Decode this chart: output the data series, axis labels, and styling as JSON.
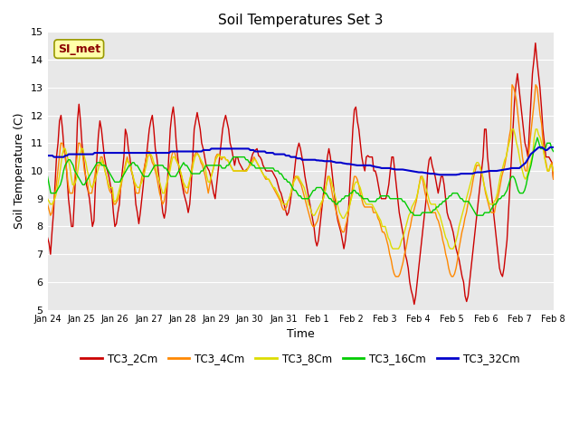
{
  "title": "Soil Temperatures Set 3",
  "xlabel": "Time",
  "ylabel": "Soil Temperature (C)",
  "ylim": [
    5.0,
    15.0
  ],
  "yticks": [
    5.0,
    6.0,
    7.0,
    8.0,
    9.0,
    10.0,
    11.0,
    12.0,
    13.0,
    14.0,
    15.0
  ],
  "bg_color": "#e8e8e8",
  "fig_color": "#ffffff",
  "watermark": "SI_met",
  "series": {
    "TC3_2Cm": {
      "color": "#cc0000",
      "lw": 1.0
    },
    "TC3_4Cm": {
      "color": "#ff8800",
      "lw": 1.0
    },
    "TC3_8Cm": {
      "color": "#dddd00",
      "lw": 1.0
    },
    "TC3_16Cm": {
      "color": "#00cc00",
      "lw": 1.0
    },
    "TC3_32Cm": {
      "color": "#0000cc",
      "lw": 1.5
    }
  },
  "xtick_labels": [
    "Jan 24",
    "Jan 25",
    "Jan 26",
    "Jan 27",
    "Jan 28",
    "Jan 29",
    "Jan 30",
    "Jan 31",
    "Feb 1",
    "Feb 2",
    "Feb 3",
    "Feb 4",
    "Feb 5",
    "Feb 6",
    "Feb 7",
    "Feb 8"
  ],
  "n_points": 385,
  "n_days": 15,
  "TC3_2Cm": [
    7.6,
    7.4,
    7.0,
    7.8,
    8.5,
    9.5,
    10.5,
    11.0,
    11.8,
    12.0,
    11.5,
    10.8,
    10.5,
    9.8,
    9.0,
    8.5,
    8.0,
    8.0,
    9.0,
    10.2,
    11.8,
    12.4,
    11.8,
    11.0,
    10.5,
    10.0,
    9.5,
    9.3,
    9.0,
    8.5,
    8.0,
    8.2,
    9.5,
    10.5,
    11.3,
    11.8,
    11.5,
    11.0,
    10.5,
    10.2,
    10.0,
    9.8,
    9.5,
    9.2,
    8.5,
    8.0,
    8.1,
    8.5,
    8.8,
    9.5,
    10.0,
    10.5,
    11.5,
    11.3,
    10.8,
    10.5,
    10.0,
    9.8,
    9.5,
    8.8,
    8.5,
    8.1,
    8.5,
    9.0,
    9.5,
    10.2,
    10.5,
    11.0,
    11.5,
    11.8,
    12.0,
    11.5,
    10.8,
    10.5,
    10.0,
    9.5,
    9.0,
    8.5,
    8.3,
    8.6,
    9.5,
    10.5,
    11.5,
    12.0,
    12.3,
    11.8,
    11.0,
    10.5,
    10.0,
    9.8,
    9.5,
    9.2,
    9.0,
    8.8,
    8.5,
    8.8,
    9.5,
    10.5,
    11.5,
    11.8,
    12.1,
    11.8,
    11.5,
    11.0,
    10.8,
    10.5,
    10.2,
    10.1,
    10.0,
    9.8,
    9.5,
    9.2,
    9.0,
    9.5,
    10.0,
    10.5,
    11.0,
    11.5,
    11.8,
    12.0,
    11.75,
    11.5,
    11.0,
    10.8,
    10.5,
    10.2,
    10.5,
    10.5,
    10.3,
    10.2,
    10.1,
    10.0,
    10.0,
    10.05,
    10.1,
    10.2,
    10.4,
    10.6,
    10.7,
    10.75,
    10.8,
    10.55,
    10.5,
    10.4,
    10.2,
    10.1,
    10.0,
    10.0,
    10.0,
    10.0,
    10.0,
    9.9,
    9.8,
    9.7,
    9.5,
    9.3,
    9.2,
    9.0,
    8.8,
    8.6,
    8.4,
    8.5,
    8.8,
    9.2,
    9.5,
    10.0,
    10.5,
    10.8,
    11.0,
    10.8,
    10.5,
    10.2,
    9.8,
    9.5,
    9.2,
    8.9,
    8.6,
    8.3,
    8.0,
    7.5,
    7.3,
    7.5,
    8.0,
    8.5,
    9.0,
    9.5,
    10.0,
    10.5,
    10.8,
    10.5,
    10.0,
    9.5,
    9.0,
    8.5,
    8.2,
    8.0,
    7.8,
    7.5,
    7.2,
    7.5,
    8.0,
    8.5,
    9.5,
    10.5,
    11.5,
    12.2,
    12.3,
    11.8,
    11.5,
    11.0,
    10.5,
    10.2,
    10.0,
    10.5,
    10.55,
    10.5,
    10.5,
    10.5,
    10.0,
    10.0,
    9.8,
    9.5,
    9.2,
    9.0,
    9.0,
    9.0,
    9.0,
    9.2,
    9.5,
    10.0,
    10.5,
    10.5,
    10.0,
    9.5,
    9.0,
    8.5,
    8.2,
    7.9,
    7.6,
    7.0,
    6.8,
    6.5,
    6.0,
    5.7,
    5.5,
    5.2,
    5.5,
    6.0,
    6.5,
    7.0,
    7.5,
    8.0,
    8.5,
    9.0,
    10.0,
    10.4,
    10.5,
    10.2,
    10.0,
    9.8,
    9.5,
    9.2,
    9.5,
    9.8,
    9.8,
    9.5,
    9.0,
    8.5,
    8.3,
    8.2,
    8.0,
    7.8,
    7.5,
    7.2,
    7.0,
    6.8,
    6.5,
    6.2,
    6.0,
    5.5,
    5.3,
    5.5,
    6.0,
    6.5,
    7.0,
    7.5,
    8.0,
    8.5,
    9.0,
    9.5,
    10.0,
    10.5,
    11.5,
    11.5,
    10.5,
    10.0,
    9.5,
    9.0,
    8.5,
    8.0,
    7.5,
    7.0,
    6.5,
    6.3,
    6.2,
    6.5,
    7.0,
    7.5,
    8.5,
    9.5,
    10.5,
    11.5,
    12.5,
    13.1,
    13.5,
    13.0,
    12.5,
    12.0,
    11.5,
    11.0,
    10.8,
    10.5,
    11.5,
    12.5,
    13.5,
    14.0,
    14.6,
    14.0,
    13.5,
    13.0,
    12.3,
    11.5,
    11.0,
    10.5,
    10.5,
    10.5,
    10.4,
    10.3,
    9.7
  ],
  "TC3_4Cm": [
    8.8,
    8.6,
    8.4,
    8.5,
    8.8,
    9.2,
    9.5,
    10.0,
    10.5,
    11.0,
    11.0,
    10.8,
    10.5,
    10.0,
    9.5,
    9.2,
    9.2,
    9.2,
    9.5,
    10.0,
    10.5,
    11.0,
    11.0,
    10.8,
    10.5,
    10.0,
    9.8,
    9.6,
    9.2,
    9.2,
    9.2,
    9.5,
    9.8,
    10.2,
    10.2,
    10.2,
    10.5,
    10.5,
    10.3,
    10.0,
    9.8,
    9.5,
    9.3,
    9.2,
    9.2,
    8.8,
    8.8,
    8.9,
    9.0,
    9.2,
    9.5,
    9.8,
    10.0,
    10.3,
    10.5,
    10.3,
    10.2,
    10.0,
    9.8,
    9.5,
    9.2,
    9.2,
    9.2,
    9.5,
    9.8,
    10.0,
    10.2,
    10.5,
    10.7,
    10.7,
    10.5,
    10.3,
    10.2,
    10.0,
    9.8,
    9.5,
    9.2,
    9.0,
    8.8,
    8.9,
    9.2,
    9.5,
    9.8,
    10.2,
    10.5,
    10.7,
    10.7,
    10.5,
    10.3,
    10.2,
    10.0,
    9.8,
    9.5,
    9.3,
    9.2,
    9.2,
    9.5,
    9.8,
    10.2,
    10.5,
    10.6,
    10.7,
    10.6,
    10.5,
    10.3,
    10.2,
    10.0,
    9.8,
    9.5,
    9.2,
    9.5,
    9.8,
    10.0,
    10.2,
    10.5,
    10.6,
    10.6,
    10.5,
    10.4,
    10.5,
    10.5,
    10.4,
    10.4,
    10.3,
    10.2,
    10.1,
    10.0,
    10.0,
    10.0,
    10.0,
    10.0,
    10.0,
    10.0,
    10.0,
    10.0,
    10.0,
    10.1,
    10.2,
    10.3,
    10.4,
    10.5,
    10.4,
    10.3,
    10.2,
    10.1,
    10.0,
    9.9,
    9.8,
    9.7,
    9.7,
    9.7,
    9.6,
    9.5,
    9.4,
    9.3,
    9.2,
    9.1,
    9.0,
    8.9,
    8.7,
    8.6,
    8.6,
    8.7,
    8.9,
    9.0,
    9.2,
    9.5,
    9.7,
    9.8,
    9.8,
    9.7,
    9.6,
    9.5,
    9.3,
    9.1,
    8.9,
    8.7,
    8.5,
    8.3,
    8.1,
    8.0,
    8.0,
    8.1,
    8.2,
    8.4,
    8.6,
    8.8,
    9.0,
    9.2,
    9.5,
    9.8,
    9.8,
    9.5,
    9.2,
    8.9,
    8.7,
    8.5,
    8.3,
    8.1,
    7.9,
    7.8,
    7.8,
    8.0,
    8.2,
    8.5,
    8.8,
    9.1,
    9.5,
    9.8,
    9.8,
    9.7,
    9.5,
    9.2,
    9.0,
    8.8,
    8.7,
    8.7,
    8.7,
    8.7,
    8.7,
    8.7,
    8.5,
    8.5,
    8.5,
    8.3,
    8.2,
    8.0,
    7.8,
    7.8,
    7.7,
    7.5,
    7.3,
    7.0,
    6.8,
    6.5,
    6.3,
    6.2,
    6.2,
    6.2,
    6.3,
    6.5,
    6.7,
    7.0,
    7.2,
    7.5,
    7.8,
    8.0,
    8.3,
    8.5,
    8.7,
    8.9,
    9.2,
    9.5,
    9.8,
    9.8,
    9.5,
    9.2,
    9.0,
    8.8,
    8.6,
    8.5,
    8.5,
    8.5,
    8.5,
    8.3,
    8.2,
    8.0,
    7.8,
    7.5,
    7.3,
    7.0,
    6.8,
    6.5,
    6.3,
    6.2,
    6.2,
    6.3,
    6.5,
    6.8,
    7.2,
    7.5,
    7.8,
    8.0,
    8.3,
    8.5,
    8.8,
    9.0,
    9.2,
    9.5,
    9.8,
    10.0,
    10.2,
    10.2,
    10.2,
    10.0,
    9.8,
    9.5,
    9.2,
    9.0,
    8.8,
    8.6,
    8.5,
    8.5,
    8.5,
    8.8,
    9.0,
    9.2,
    9.5,
    9.8,
    10.0,
    10.2,
    10.5,
    10.8,
    11.2,
    11.5,
    13.1,
    13.0,
    12.8,
    12.5,
    12.0,
    11.5,
    11.0,
    10.5,
    10.2,
    10.0,
    10.0,
    10.5,
    11.0,
    11.5,
    12.0,
    12.5,
    13.1,
    13.0,
    12.5,
    12.0,
    11.7,
    11.0,
    10.5,
    10.3,
    10.0,
    10.0,
    10.2,
    10.3,
    9.7
  ],
  "TC3_8Cm": [
    9.0,
    8.9,
    8.8,
    8.8,
    8.9,
    9.0,
    9.2,
    9.5,
    9.8,
    10.2,
    10.6,
    10.8,
    10.8,
    10.6,
    10.4,
    10.2,
    9.8,
    9.5,
    9.5,
    9.6,
    9.8,
    10.2,
    10.6,
    10.8,
    10.8,
    10.5,
    10.3,
    10.0,
    9.8,
    9.5,
    9.4,
    9.5,
    9.6,
    9.8,
    10.0,
    10.2,
    10.2,
    10.4,
    10.2,
    10.0,
    9.8,
    9.6,
    9.4,
    9.4,
    9.4,
    8.9,
    8.9,
    9.0,
    9.2,
    9.4,
    9.6,
    9.8,
    10.0,
    10.2,
    10.4,
    10.3,
    10.2,
    10.0,
    9.8,
    9.6,
    9.5,
    9.4,
    9.4,
    9.5,
    9.6,
    9.8,
    10.0,
    10.2,
    10.5,
    10.6,
    10.6,
    10.5,
    10.3,
    10.2,
    10.0,
    9.8,
    9.6,
    9.4,
    9.2,
    9.2,
    9.4,
    9.6,
    9.8,
    10.0,
    10.3,
    10.5,
    10.5,
    10.4,
    10.3,
    10.2,
    10.0,
    9.8,
    9.6,
    9.5,
    9.4,
    9.4,
    9.6,
    9.8,
    10.0,
    10.3,
    10.5,
    10.6,
    10.6,
    10.5,
    10.4,
    10.3,
    10.2,
    10.1,
    9.8,
    9.6,
    9.6,
    9.8,
    10.0,
    10.2,
    10.4,
    10.5,
    10.6,
    10.5,
    10.5,
    10.5,
    10.5,
    10.4,
    10.4,
    10.3,
    10.2,
    10.1,
    10.0,
    10.0,
    10.0,
    10.0,
    10.0,
    10.0,
    10.0,
    10.0,
    10.0,
    10.0,
    10.1,
    10.2,
    10.2,
    10.3,
    10.4,
    10.4,
    10.3,
    10.2,
    10.1,
    10.0,
    9.9,
    9.8,
    9.8,
    9.7,
    9.7,
    9.6,
    9.5,
    9.4,
    9.4,
    9.3,
    9.2,
    9.1,
    9.0,
    8.9,
    8.8,
    8.8,
    8.8,
    8.9,
    9.0,
    9.2,
    9.4,
    9.6,
    9.7,
    9.8,
    9.8,
    9.7,
    9.6,
    9.5,
    9.4,
    9.2,
    9.0,
    8.8,
    8.7,
    8.5,
    8.4,
    8.4,
    8.5,
    8.6,
    8.7,
    8.8,
    8.9,
    9.0,
    9.2,
    9.5,
    9.7,
    9.8,
    9.7,
    9.5,
    9.3,
    9.1,
    8.9,
    8.7,
    8.5,
    8.4,
    8.3,
    8.3,
    8.4,
    8.5,
    8.6,
    8.8,
    9.0,
    9.2,
    9.5,
    9.6,
    9.6,
    9.5,
    9.4,
    9.2,
    9.0,
    8.9,
    8.8,
    8.8,
    8.8,
    8.8,
    8.8,
    8.7,
    8.6,
    8.5,
    8.4,
    8.3,
    8.2,
    8.0,
    8.0,
    8.0,
    7.8,
    7.6,
    7.5,
    7.3,
    7.2,
    7.2,
    7.2,
    7.2,
    7.2,
    7.3,
    7.5,
    7.6,
    7.8,
    8.0,
    8.2,
    8.4,
    8.5,
    8.7,
    8.8,
    8.9,
    9.0,
    9.2,
    9.5,
    9.7,
    9.8,
    9.7,
    9.5,
    9.3,
    9.1,
    8.9,
    8.8,
    8.8,
    8.8,
    8.8,
    8.6,
    8.5,
    8.4,
    8.2,
    8.0,
    7.8,
    7.6,
    7.5,
    7.3,
    7.2,
    7.2,
    7.2,
    7.3,
    7.5,
    7.7,
    8.0,
    8.2,
    8.4,
    8.6,
    8.8,
    9.0,
    9.2,
    9.4,
    9.6,
    9.8,
    10.0,
    10.2,
    10.3,
    10.3,
    10.2,
    10.0,
    9.8,
    9.5,
    9.3,
    9.1,
    8.9,
    8.8,
    8.8,
    8.8,
    8.9,
    9.0,
    9.2,
    9.5,
    9.8,
    10.0,
    10.2,
    10.4,
    10.5,
    10.8,
    11.0,
    11.2,
    11.5,
    11.5,
    11.3,
    11.0,
    10.8,
    10.5,
    10.2,
    10.0,
    9.8,
    9.7,
    9.8,
    10.0,
    10.2,
    10.4,
    10.6,
    11.2,
    11.5,
    11.5,
    11.3,
    11.2,
    11.0,
    10.8,
    10.5,
    10.2,
    10.0,
    10.0,
    10.2,
    10.2,
    10.0
  ],
  "TC3_16Cm": [
    9.8,
    9.5,
    9.2,
    9.2,
    9.2,
    9.2,
    9.3,
    9.4,
    9.5,
    9.7,
    10.0,
    10.2,
    10.3,
    10.4,
    10.4,
    10.3,
    10.2,
    10.0,
    9.9,
    9.8,
    9.7,
    9.6,
    9.5,
    9.5,
    9.6,
    9.7,
    9.8,
    9.9,
    10.0,
    10.1,
    10.2,
    10.3,
    10.3,
    10.3,
    10.2,
    10.2,
    10.2,
    10.1,
    10.0,
    9.9,
    9.8,
    9.7,
    9.6,
    9.6,
    9.6,
    9.6,
    9.7,
    9.8,
    9.9,
    10.0,
    10.1,
    10.2,
    10.2,
    10.3,
    10.3,
    10.2,
    10.2,
    10.1,
    10.0,
    9.9,
    9.8,
    9.8,
    9.8,
    9.8,
    9.9,
    10.0,
    10.1,
    10.2,
    10.2,
    10.2,
    10.2,
    10.2,
    10.2,
    10.1,
    10.1,
    10.0,
    9.9,
    9.8,
    9.8,
    9.8,
    9.8,
    9.9,
    10.0,
    10.1,
    10.2,
    10.3,
    10.2,
    10.2,
    10.1,
    10.0,
    9.9,
    9.9,
    9.9,
    9.9,
    9.9,
    9.9,
    10.0,
    10.0,
    10.1,
    10.2,
    10.2,
    10.2,
    10.2,
    10.2,
    10.2,
    10.2,
    10.2,
    10.2,
    10.2,
    10.1,
    10.1,
    10.1,
    10.2,
    10.2,
    10.3,
    10.4,
    10.5,
    10.5,
    10.5,
    10.5,
    10.5,
    10.5,
    10.5,
    10.5,
    10.4,
    10.4,
    10.3,
    10.3,
    10.2,
    10.2,
    10.1,
    10.1,
    10.1,
    10.1,
    10.1,
    10.1,
    10.1,
    10.1,
    10.1,
    10.1,
    10.1,
    10.1,
    10.0,
    10.0,
    10.0,
    9.9,
    9.9,
    9.8,
    9.7,
    9.7,
    9.6,
    9.6,
    9.5,
    9.4,
    9.3,
    9.3,
    9.2,
    9.1,
    9.1,
    9.0,
    9.0,
    9.0,
    9.0,
    9.0,
    9.1,
    9.2,
    9.3,
    9.3,
    9.4,
    9.4,
    9.4,
    9.4,
    9.3,
    9.2,
    9.2,
    9.1,
    9.0,
    9.0,
    8.9,
    8.9,
    8.8,
    8.8,
    8.9,
    8.9,
    9.0,
    9.0,
    9.1,
    9.1,
    9.1,
    9.2,
    9.2,
    9.3,
    9.3,
    9.2,
    9.2,
    9.1,
    9.1,
    9.0,
    9.0,
    9.0,
    9.0,
    8.9,
    8.9,
    8.9,
    8.9,
    8.9,
    9.0,
    9.0,
    9.1,
    9.1,
    9.1,
    9.1,
    9.1,
    9.1,
    9.0,
    9.0,
    9.0,
    9.0,
    9.0,
    9.0,
    9.0,
    9.0,
    8.9,
    8.9,
    8.8,
    8.7,
    8.6,
    8.5,
    8.5,
    8.4,
    8.4,
    8.4,
    8.4,
    8.4,
    8.5,
    8.5,
    8.5,
    8.5,
    8.5,
    8.5,
    8.5,
    8.6,
    8.6,
    8.7,
    8.7,
    8.8,
    8.8,
    8.9,
    8.9,
    9.0,
    9.0,
    9.1,
    9.1,
    9.2,
    9.2,
    9.2,
    9.2,
    9.1,
    9.0,
    9.0,
    8.9,
    8.9,
    8.9,
    8.9,
    8.8,
    8.7,
    8.6,
    8.5,
    8.4,
    8.4,
    8.4,
    8.4,
    8.4,
    8.5,
    8.5,
    8.5,
    8.5,
    8.6,
    8.7,
    8.8,
    8.8,
    8.9,
    9.0,
    9.0,
    9.1,
    9.1,
    9.2,
    9.3,
    9.5,
    9.7,
    9.8,
    9.8,
    9.7,
    9.5,
    9.3,
    9.2,
    9.2,
    9.2,
    9.3,
    9.5,
    9.8,
    10.0,
    10.2,
    10.5,
    10.8,
    11.0,
    11.2,
    11.0,
    10.8,
    10.8,
    10.8,
    10.8,
    11.0,
    11.0,
    11.0,
    10.8,
    10.7
  ],
  "TC3_32Cm": [
    10.55,
    10.55,
    10.55,
    10.55,
    10.5,
    10.5,
    10.5,
    10.5,
    10.5,
    10.5,
    10.5,
    10.55,
    10.55,
    10.6,
    10.6,
    10.6,
    10.6,
    10.6,
    10.6,
    10.6,
    10.6,
    10.6,
    10.6,
    10.6,
    10.6,
    10.6,
    10.6,
    10.6,
    10.6,
    10.65,
    10.65,
    10.65,
    10.65,
    10.65,
    10.65,
    10.65,
    10.65,
    10.65,
    10.65,
    10.65,
    10.65,
    10.65,
    10.65,
    10.65,
    10.65,
    10.65,
    10.65,
    10.65,
    10.65,
    10.65,
    10.65,
    10.65,
    10.65,
    10.65,
    10.65,
    10.65,
    10.65,
    10.65,
    10.65,
    10.65,
    10.65,
    10.65,
    10.65,
    10.65,
    10.65,
    10.65,
    10.65,
    10.65,
    10.65,
    10.65,
    10.65,
    10.65,
    10.65,
    10.65,
    10.65,
    10.65,
    10.7,
    10.7,
    10.7,
    10.7,
    10.7,
    10.7,
    10.7,
    10.7,
    10.7,
    10.7,
    10.7,
    10.7,
    10.7,
    10.7,
    10.7,
    10.7,
    10.7,
    10.7,
    10.7,
    10.7,
    10.75,
    10.75,
    10.75,
    10.75,
    10.75,
    10.8,
    10.8,
    10.8,
    10.8,
    10.8,
    10.8,
    10.8,
    10.8,
    10.8,
    10.8,
    10.8,
    10.8,
    10.8,
    10.8,
    10.8,
    10.8,
    10.8,
    10.8,
    10.8,
    10.8,
    10.8,
    10.8,
    10.8,
    10.8,
    10.75,
    10.75,
    10.75,
    10.7,
    10.7,
    10.7,
    10.7,
    10.7,
    10.7,
    10.7,
    10.65,
    10.65,
    10.65,
    10.65,
    10.65,
    10.6,
    10.6,
    10.6,
    10.6,
    10.6,
    10.6,
    10.6,
    10.55,
    10.55,
    10.55,
    10.5,
    10.5,
    10.5,
    10.5,
    10.45,
    10.45,
    10.45,
    10.4,
    10.4,
    10.4,
    10.4,
    10.4,
    10.4,
    10.4,
    10.4,
    10.4,
    10.38,
    10.38,
    10.37,
    10.37,
    10.36,
    10.35,
    10.35,
    10.35,
    10.35,
    10.35,
    10.33,
    10.32,
    10.3,
    10.3,
    10.3,
    10.3,
    10.28,
    10.27,
    10.26,
    10.25,
    10.25,
    10.24,
    10.23,
    10.22,
    10.21,
    10.2,
    10.2,
    10.2,
    10.2,
    10.2,
    10.2,
    10.2,
    10.2,
    10.2,
    10.18,
    10.17,
    10.15,
    10.14,
    10.13,
    10.12,
    10.1,
    10.1,
    10.1,
    10.1,
    10.1,
    10.1,
    10.08,
    10.07,
    10.06,
    10.05,
    10.05,
    10.05,
    10.05,
    10.05,
    10.04,
    10.03,
    10.02,
    10.01,
    10.0,
    9.99,
    9.98,
    9.97,
    9.96,
    9.95,
    9.95,
    9.95,
    9.94,
    9.93,
    9.92,
    9.91,
    9.9,
    9.9,
    9.9,
    9.89,
    9.88,
    9.87,
    9.86,
    9.86,
    9.86,
    9.86,
    9.86,
    9.86,
    9.86,
    9.86,
    9.86,
    9.86,
    9.86,
    9.87,
    9.88,
    9.9,
    9.9,
    9.9,
    9.9,
    9.9,
    9.9,
    9.9,
    9.9,
    9.92,
    9.94,
    9.95,
    9.95,
    9.95,
    9.95,
    9.96,
    9.97,
    9.98,
    9.99,
    10.0,
    10.0,
    10.0,
    10.0,
    10.0,
    10.01,
    10.02,
    10.03,
    10.04,
    10.05,
    10.06,
    10.07,
    10.08,
    10.1,
    10.1,
    10.1,
    10.1,
    10.1,
    10.1,
    10.15,
    10.2,
    10.25,
    10.3,
    10.4,
    10.5,
    10.6,
    10.65,
    10.7,
    10.75,
    10.8,
    10.85,
    10.85,
    10.85,
    10.8,
    10.75,
    10.75,
    10.8,
    10.85,
    10.85,
    10.85
  ]
}
